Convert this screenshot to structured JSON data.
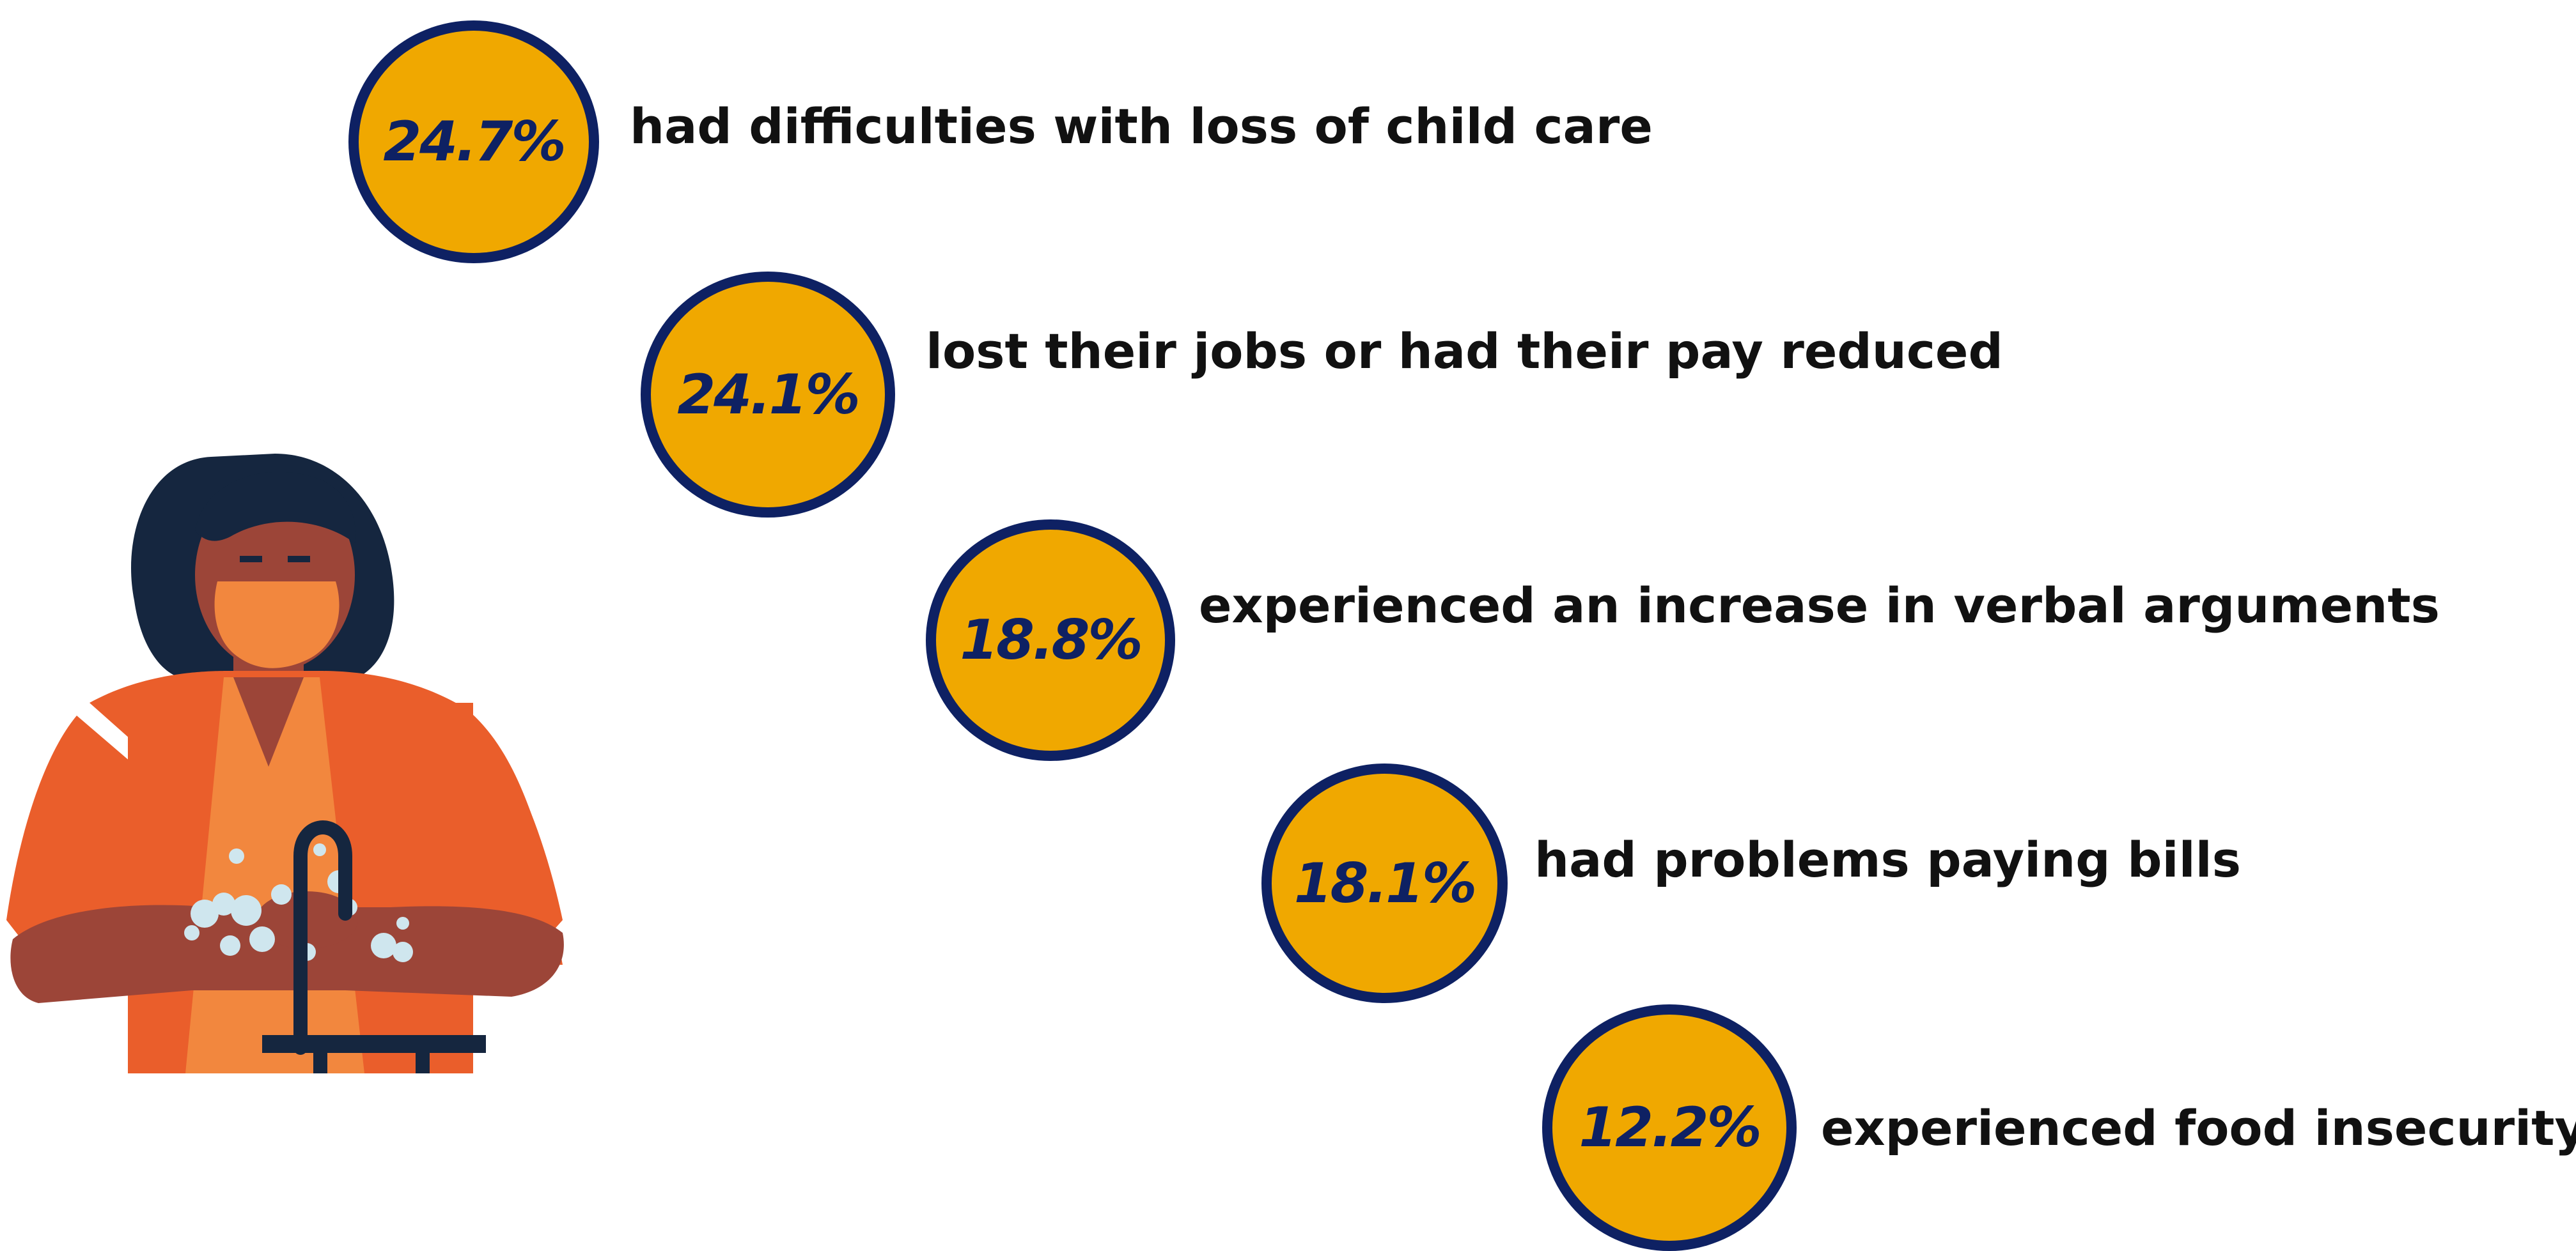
{
  "stats": [
    {
      "value": "24.7%",
      "label": "had difficulties with loss of child care"
    },
    {
      "value": "24.1%",
      "label": "lost their jobs or had their pay reduced"
    },
    {
      "value": "18.8%",
      "label": "experienced an increase in verbal arguments"
    },
    {
      "value": "18.1%",
      "label": "had problems paying bills"
    },
    {
      "value": "12.2%",
      "label": "experienced food insecurity"
    }
  ],
  "colors": {
    "circle_fill": "#F0A800",
    "circle_border": "#0E2163",
    "text": "#111111",
    "shirt": "#EA5E2B",
    "shirt_inner": "#F2873E",
    "skin": "#9C4538",
    "hair": "#15263F",
    "mask": "#F2873E",
    "soap": "#CFE6EE"
  },
  "illustration": {
    "icon": "person-washing-hands-icon"
  }
}
